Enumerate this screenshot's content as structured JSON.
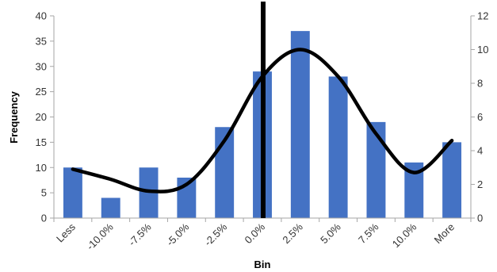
{
  "chart_data": {
    "type": "bar",
    "title": "",
    "xlabel": "Bin",
    "ylabel": "Frequency",
    "categories": [
      "Less",
      "-10.0%",
      "-7.5%",
      "-5.0%",
      "-2.5%",
      "0.0%",
      "2.5%",
      "5.0%",
      "7.5%",
      "10.0%",
      "More"
    ],
    "series": [
      {
        "values": [
          10,
          4,
          10,
          8,
          18,
          29,
          37,
          28,
          19,
          11,
          15
        ],
        "color": "#4472C4",
        "axis": "left"
      },
      {
        "type": "line",
        "smooth": true,
        "values": [
          2.9,
          2.3,
          1.6,
          2.0,
          4.6,
          8.4,
          10.0,
          8.4,
          5.0,
          2.7,
          4.6
        ],
        "color": "#000000",
        "axis": "right"
      }
    ],
    "ylim": [
      0,
      40
    ],
    "yticks": [
      0,
      5,
      10,
      15,
      20,
      25,
      30,
      35,
      40
    ],
    "y2lim": [
      0,
      12
    ],
    "y2ticks": [
      0,
      2,
      4,
      6,
      8,
      10,
      12
    ],
    "vertical_marker": {
      "category": "0.0%",
      "color": "#000000"
    },
    "grid": false,
    "legend": "none"
  }
}
